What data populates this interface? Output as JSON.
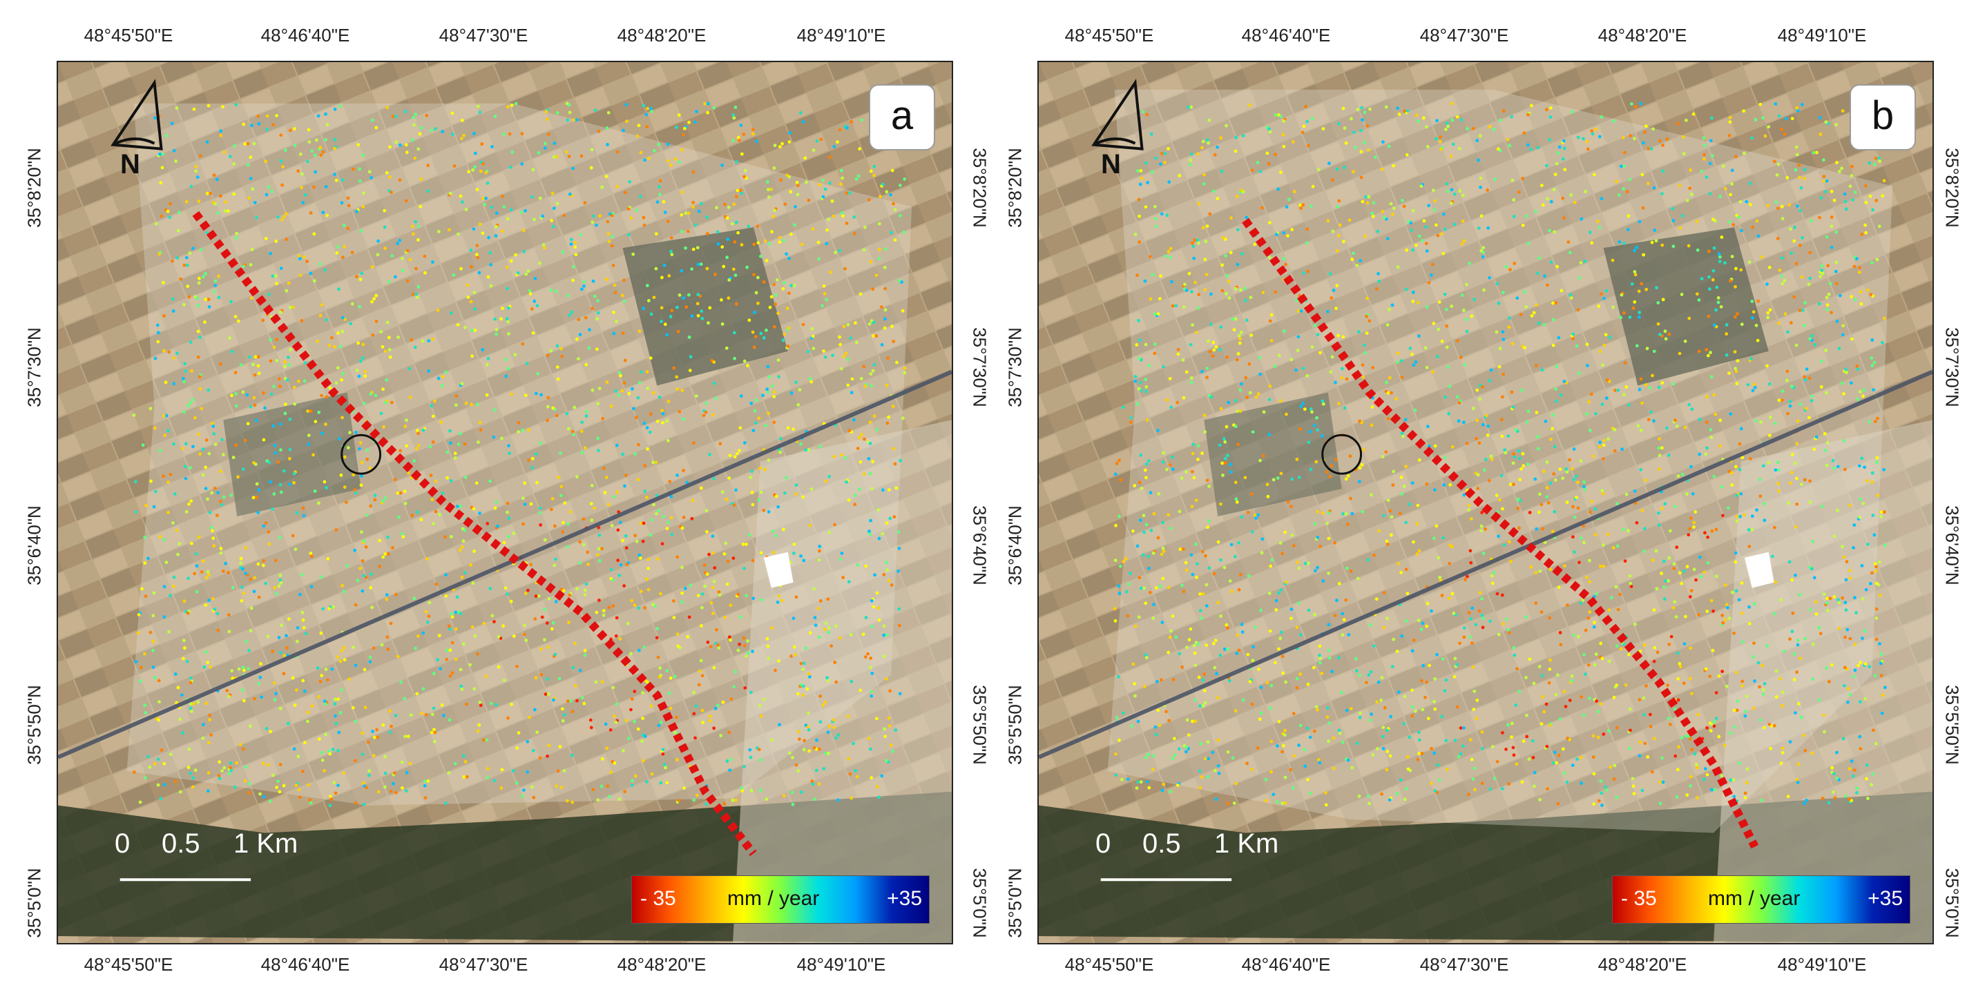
{
  "axes": {
    "longitude_ticks": [
      "48°45'50\"E",
      "48°46'40\"E",
      "48°47'30\"E",
      "48°48'20\"E",
      "48°49'10\"E"
    ],
    "latitude_ticks": [
      "35°8'20\"N",
      "35°7'30\"N",
      "35°6'40\"N",
      "35°5'50\"N",
      "35°5'0\"N"
    ]
  },
  "panels": [
    {
      "label": "a",
      "north": "N",
      "scale_labels": [
        "0",
        "0.5",
        "1 Km"
      ],
      "legend": {
        "min": "- 35",
        "unit": "mm / year",
        "max": "+35"
      }
    },
    {
      "label": "b",
      "north": "N",
      "scale_labels": [
        "0",
        "0.5",
        "1 Km"
      ],
      "legend": {
        "min": "- 35",
        "unit": "mm / year",
        "max": "+35"
      }
    }
  ],
  "colors": {
    "fault_line": "#e01010",
    "ps_palette": [
      "#ff2000",
      "#ff8000",
      "#ffd000",
      "#ffff00",
      "#c0ff40",
      "#60ff80",
      "#20e0c0",
      "#00c0ff"
    ]
  }
}
